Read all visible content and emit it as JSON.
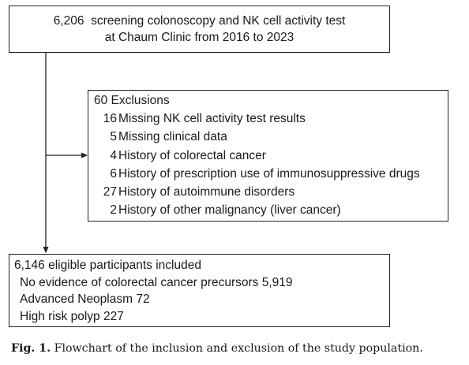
{
  "top_box": {
    "line1": "6,206  screening colonoscopy and NK cell activity test",
    "line2": "at Chaum Clinic from 2016 to 2023"
  },
  "exclusions": {
    "title": "60 Exclusions",
    "items": [
      {
        "count": "16",
        "label": "Missing NK cell activity test results"
      },
      {
        "count": "5",
        "label": "Missing clinical data"
      },
      {
        "count": "4",
        "label": "History of colorectal cancer"
      },
      {
        "count": "6",
        "label": "History of prescription use of immunosuppressive drugs"
      },
      {
        "count": "27",
        "label": "History of autoimmune disorders"
      },
      {
        "count": "2",
        "label": "History of other malignancy (liver cancer)"
      }
    ]
  },
  "included": {
    "title": "6,146 eligible participants included",
    "lines": [
      "No evidence of colorectal cancer precursors 5,919",
      "Advanced Neoplasm 72",
      "High risk polyp 227"
    ]
  },
  "caption": {
    "label": "Fig. 1.",
    "text": "Flowchart of the inclusion and exclusion of the study population."
  }
}
